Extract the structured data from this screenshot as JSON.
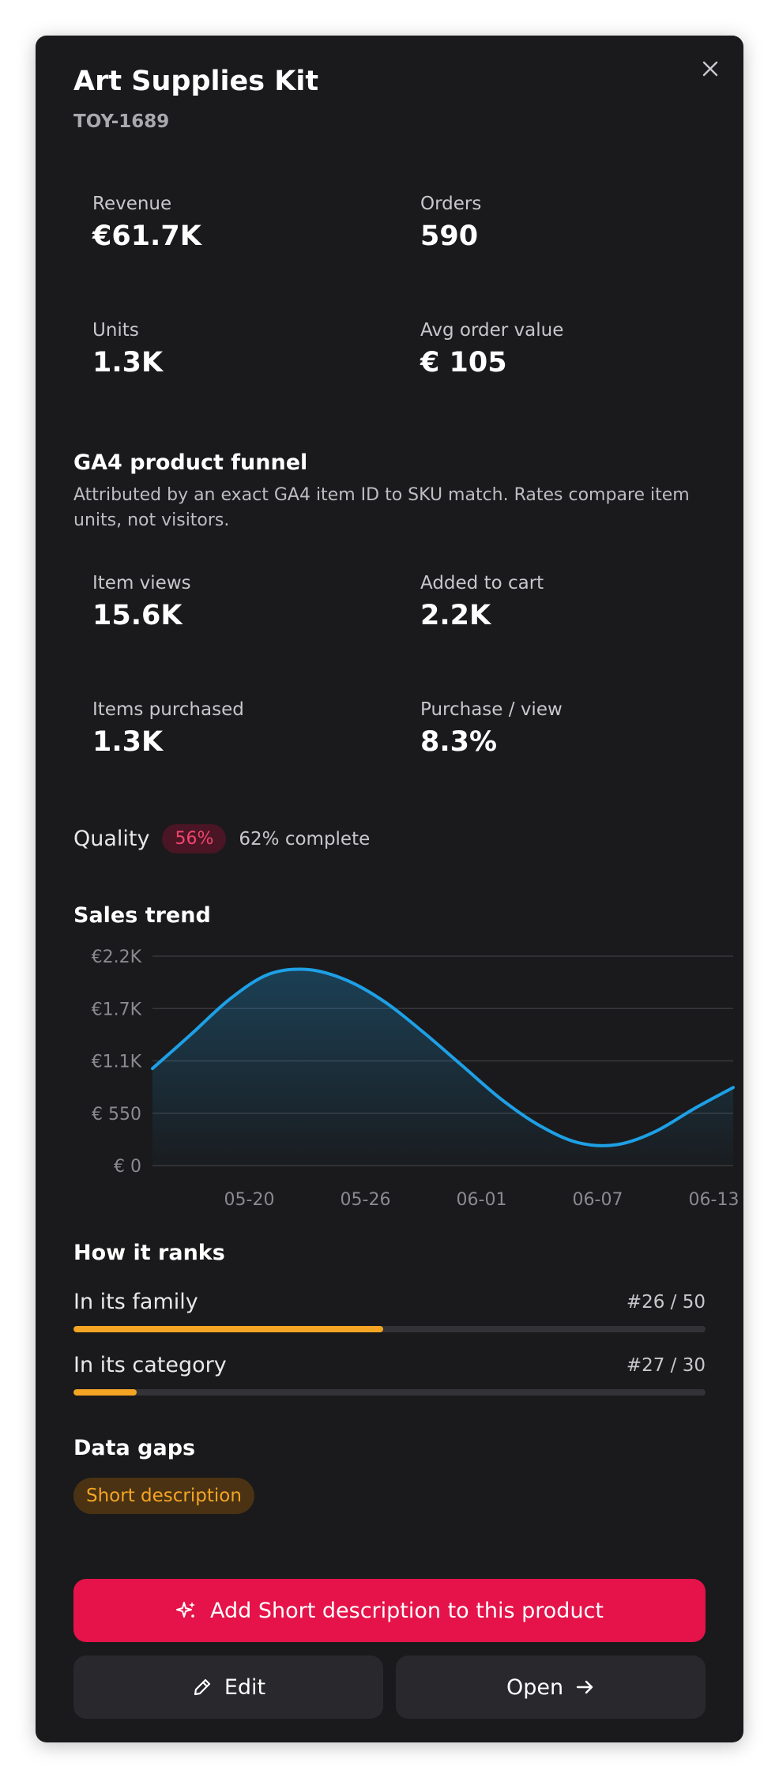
{
  "product": {
    "title": "Art Supplies Kit",
    "sku": "TOY-1689"
  },
  "stats": [
    {
      "label": "Revenue",
      "value": "€61.7K"
    },
    {
      "label": "Orders",
      "value": "590"
    },
    {
      "label": "Units",
      "value": "1.3K"
    },
    {
      "label": "Avg order value",
      "value": "€ 105"
    }
  ],
  "funnel": {
    "title": "GA4 product funnel",
    "description": "Attributed by an exact GA4 item ID to SKU match. Rates compare item units, not visitors.",
    "stats": [
      {
        "label": "Item views",
        "value": "15.6K"
      },
      {
        "label": "Added to cart",
        "value": "2.2K"
      },
      {
        "label": "Items purchased",
        "value": "1.3K"
      },
      {
        "label": "Purchase / view",
        "value": "8.3%"
      }
    ]
  },
  "quality": {
    "label": "Quality",
    "badge": "56%",
    "complete": "62% complete",
    "badge_color": "#f0466e"
  },
  "sales_trend": {
    "title": "Sales trend"
  },
  "chart_data": {
    "type": "area",
    "y_ticks": [
      "€2.2K",
      "€1.7K",
      "€1.1K",
      "€ 550",
      "€ 0"
    ],
    "y_tick_values": [
      2200,
      1650,
      1100,
      550,
      0
    ],
    "x_ticks": [
      "05-20",
      "05-26",
      "06-01",
      "06-07",
      "06-13"
    ],
    "x": [
      "05-15",
      "05-17",
      "05-19",
      "05-21",
      "05-23",
      "05-25",
      "05-27",
      "05-29",
      "05-31",
      "06-02",
      "06-04",
      "06-06",
      "06-08",
      "06-10",
      "06-12",
      "06-14"
    ],
    "values": [
      1020,
      1380,
      1750,
      2010,
      2060,
      1950,
      1720,
      1400,
      1050,
      700,
      420,
      240,
      220,
      360,
      600,
      820
    ],
    "ylim": [
      0,
      2200
    ],
    "grid": true,
    "line_color": "#1ea0e6"
  },
  "ranks": {
    "title": "How it ranks",
    "items": [
      {
        "label": "In its family",
        "position": "#26 / 50",
        "fraction": 0.49
      },
      {
        "label": "In its category",
        "position": "#27 / 30",
        "fraction": 0.1
      }
    ],
    "bar_color": "#f5a524"
  },
  "data_gaps": {
    "title": "Data gaps",
    "items": [
      "Short description"
    ]
  },
  "actions": {
    "primary": "Add Short description to this product",
    "edit": "Edit",
    "open": "Open"
  },
  "icons": {
    "close": "close-icon",
    "sparkle": "sparkle-icon",
    "pencil": "pencil-icon",
    "arrow": "arrow-right-icon"
  }
}
